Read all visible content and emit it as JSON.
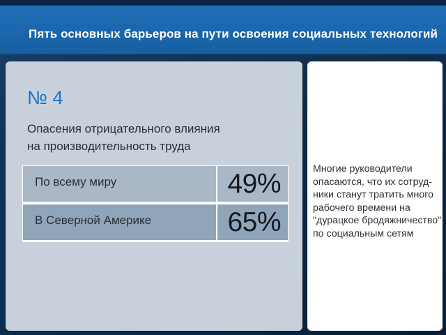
{
  "header": {
    "title": "Пять основных барьеров на пути освоения социальных технологий"
  },
  "card": {
    "number": "№ 4",
    "subtitle_line1": "Опасения отрицательного влияния",
    "subtitle_line2": "на производительность труда",
    "rows": [
      {
        "label": "По всему миру",
        "value": "49%"
      },
      {
        "label": "В Северной Америке",
        "value": "65%"
      }
    ]
  },
  "side": {
    "note_lines": [
      "Многие руководители",
      "опасаются, что их сотруд-",
      "ники станут тратить много",
      "рабочего времени на",
      "\"дурацкое бродяжничество\"",
      "по социальным сетям"
    ]
  },
  "colors": {
    "header": "#1b66ad",
    "accent_number": "#1e73c6",
    "panel_left": "#c8d1db",
    "row_1": "#a9b7c7",
    "row_2": "#90a4ba"
  }
}
